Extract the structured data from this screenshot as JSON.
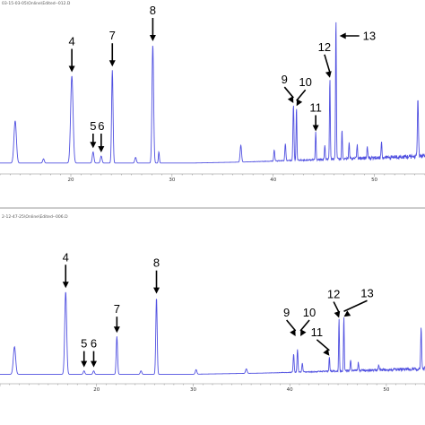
{
  "panels": [
    {
      "header": "03-15-03-05\\Online\\Edited--012.D",
      "x_ticks": [
        "20",
        "30",
        "40",
        "50"
      ],
      "tick_values": [
        20,
        30,
        40,
        50
      ],
      "peak_labels": [
        {
          "text": "4",
          "x": 20.1
        },
        {
          "text": "5",
          "x": 22.2
        },
        {
          "text": "6",
          "x": 23.0
        },
        {
          "text": "7",
          "x": 24.1
        },
        {
          "text": "8",
          "x": 28.1
        },
        {
          "text": "9",
          "x": 42.0
        },
        {
          "text": "10",
          "x": 42.3
        },
        {
          "text": "11",
          "x": 44.2
        },
        {
          "text": "12",
          "x": 45.6
        },
        {
          "text": "13",
          "x": 46.2
        }
      ]
    },
    {
      "header": "2-12-47-25\\Online\\Edited--006.D",
      "x_ticks": [
        "20",
        "30",
        "40",
        "50"
      ],
      "tick_values": [
        20,
        30,
        40,
        50
      ],
      "peak_labels": [
        {
          "text": "4",
          "x": 16.8
        },
        {
          "text": "5",
          "x": 18.7
        },
        {
          "text": "6",
          "x": 19.7
        },
        {
          "text": "7",
          "x": 22.1
        },
        {
          "text": "8",
          "x": 26.2
        },
        {
          "text": "9",
          "x": 40.6
        },
        {
          "text": "10",
          "x": 41.1
        },
        {
          "text": "11",
          "x": 44.1
        },
        {
          "text": "12",
          "x": 45.1
        },
        {
          "text": "13",
          "x": 45.6
        }
      ]
    }
  ],
  "chart_data": [
    {
      "type": "line",
      "xlim": [
        13,
        55
      ],
      "ylim": [
        0,
        1
      ],
      "color": "#5050e0",
      "baseline": 0.02,
      "peaks": [
        {
          "x": 14.5,
          "y": 0.3,
          "w": 0.12
        },
        {
          "x": 17.3,
          "y": 0.03,
          "w": 0.08
        },
        {
          "x": 20.1,
          "y": 0.62,
          "w": 0.12
        },
        {
          "x": 22.2,
          "y": 0.08,
          "w": 0.08
        },
        {
          "x": 23.0,
          "y": 0.05,
          "w": 0.08
        },
        {
          "x": 24.1,
          "y": 0.66,
          "w": 0.07
        },
        {
          "x": 26.4,
          "y": 0.04,
          "w": 0.08
        },
        {
          "x": 28.1,
          "y": 0.84,
          "w": 0.08
        },
        {
          "x": 28.7,
          "y": 0.08,
          "w": 0.05
        },
        {
          "x": 36.8,
          "y": 0.12,
          "w": 0.07
        },
        {
          "x": 40.1,
          "y": 0.08,
          "w": 0.05
        },
        {
          "x": 41.2,
          "y": 0.12,
          "w": 0.05
        },
        {
          "x": 42.0,
          "y": 0.4,
          "w": 0.05
        },
        {
          "x": 42.3,
          "y": 0.38,
          "w": 0.04
        },
        {
          "x": 44.2,
          "y": 0.2,
          "w": 0.04
        },
        {
          "x": 45.1,
          "y": 0.1,
          "w": 0.04
        },
        {
          "x": 45.6,
          "y": 0.58,
          "w": 0.04
        },
        {
          "x": 46.2,
          "y": 1.0,
          "w": 0.04
        },
        {
          "x": 46.8,
          "y": 0.2,
          "w": 0.04
        },
        {
          "x": 47.5,
          "y": 0.12,
          "w": 0.04
        },
        {
          "x": 48.3,
          "y": 0.1,
          "w": 0.04
        },
        {
          "x": 49.3,
          "y": 0.09,
          "w": 0.04
        },
        {
          "x": 50.7,
          "y": 0.12,
          "w": 0.04
        },
        {
          "x": 54.3,
          "y": 0.42,
          "w": 0.05
        }
      ]
    },
    {
      "type": "line",
      "xlim": [
        10,
        54
      ],
      "ylim": [
        0,
        1
      ],
      "color": "#5050e0",
      "baseline": 0.02,
      "peaks": [
        {
          "x": 11.5,
          "y": 0.24,
          "w": 0.12
        },
        {
          "x": 16.8,
          "y": 0.72,
          "w": 0.1
        },
        {
          "x": 18.7,
          "y": 0.03,
          "w": 0.08
        },
        {
          "x": 19.7,
          "y": 0.03,
          "w": 0.08
        },
        {
          "x": 22.1,
          "y": 0.33,
          "w": 0.07
        },
        {
          "x": 24.6,
          "y": 0.03,
          "w": 0.08
        },
        {
          "x": 26.2,
          "y": 0.67,
          "w": 0.07
        },
        {
          "x": 30.3,
          "y": 0.04,
          "w": 0.08
        },
        {
          "x": 35.5,
          "y": 0.04,
          "w": 0.08
        },
        {
          "x": 40.4,
          "y": 0.16,
          "w": 0.05
        },
        {
          "x": 40.8,
          "y": 0.2,
          "w": 0.05
        },
        {
          "x": 41.3,
          "y": 0.08,
          "w": 0.05
        },
        {
          "x": 44.1,
          "y": 0.13,
          "w": 0.04
        },
        {
          "x": 45.1,
          "y": 0.46,
          "w": 0.04
        },
        {
          "x": 45.6,
          "y": 0.47,
          "w": 0.04
        },
        {
          "x": 46.3,
          "y": 0.1,
          "w": 0.04
        },
        {
          "x": 47.1,
          "y": 0.07,
          "w": 0.04
        },
        {
          "x": 49.2,
          "y": 0.05,
          "w": 0.04
        },
        {
          "x": 53.6,
          "y": 0.35,
          "w": 0.05
        }
      ]
    }
  ]
}
